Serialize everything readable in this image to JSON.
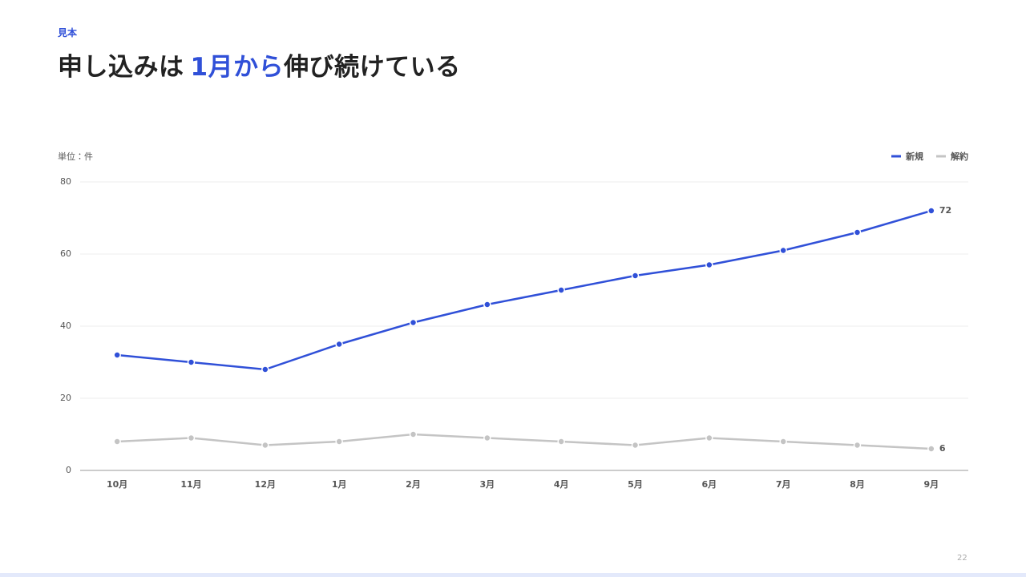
{
  "header": {
    "tag": "見本",
    "title": {
      "before": "申し込みは",
      "highlight": "1月から",
      "after": "伸び続けている"
    }
  },
  "chart_data": {
    "type": "line",
    "unit_label": "単位：件",
    "categories": [
      "10月",
      "11月",
      "12月",
      "1月",
      "2月",
      "3月",
      "4月",
      "5月",
      "6月",
      "7月",
      "8月",
      "9月"
    ],
    "series": [
      {
        "name": "新規",
        "color": "#3050d8",
        "values": [
          32,
          30,
          28,
          35,
          41,
          46,
          50,
          54,
          57,
          61,
          66,
          72
        ]
      },
      {
        "name": "解約",
        "color": "#c4c4c4",
        "values": [
          8,
          9,
          7,
          8,
          10,
          9,
          8,
          7,
          9,
          8,
          7,
          6
        ]
      }
    ],
    "ylim": [
      0,
      80
    ],
    "yticks": [
      0,
      20,
      40,
      60,
      80
    ],
    "grid": true,
    "legend": "top-right"
  },
  "footer": {
    "page_number": "22"
  }
}
